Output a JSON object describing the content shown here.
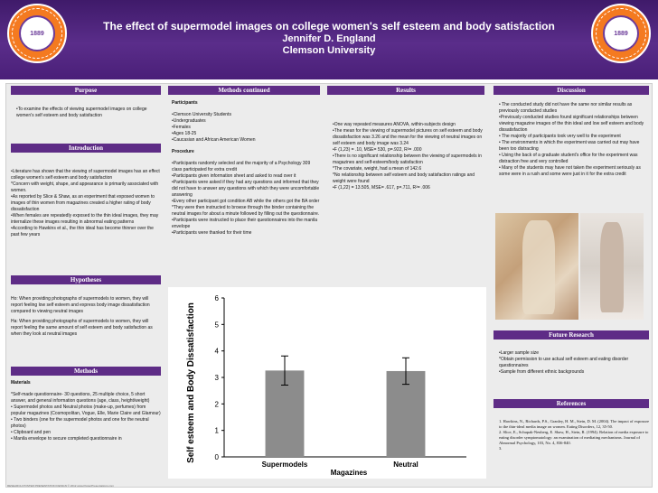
{
  "header": {
    "title": "The effect of supermodel images on college women's self esteem and body satisfaction",
    "author": "Jennifer D. England",
    "institution": "Clemson University",
    "logo_text": "CLEMSON UNIVERSITY",
    "logo_year": "1889",
    "colors": {
      "banner": "#5a2d8a",
      "logo": "#f47a20"
    }
  },
  "purpose": {
    "heading": "Purpose",
    "text": "•To examine the effects of viewing supermodel images on college women's self esteem and body satisfaction"
  },
  "introduction": {
    "heading": "Introduction",
    "lines": [
      "•Literature has shown that the viewing of supermodel images has an effect college women's self esteem and body satisfaction",
      "*Concern with weight, shape, and appearance is primarily associated with women.",
      "•As reported by Slice & Shaw, as an experiment that exposed women to images of thin women from magazines created a higher rating of body dissatisfaction",
      "•When females are repeatedly exposed to the thin ideal images, they may internalize these images resulting in abnormal eating patterns",
      "•According to Hawkins et al., the thin ideal has become thinner over the past few years"
    ]
  },
  "hypotheses": {
    "heading": "Hypotheses",
    "lines": [
      "Ho: When providing photographs of supermodels to women, they will report feeling low self esteem and express body image dissatisfaction compared to viewing neutral images",
      "Ha: When providing photographs of supermodels to women, they will report feeling the same amount of self esteem and body satisfaction as when they look at neutral images"
    ]
  },
  "methods": {
    "heading": "Methods",
    "subheading": "Materials",
    "lines": [
      "*Self-made questionnaire- 30 questions, 25 multiple choice, 5 short answer, and general information questions (age, class, height/weight)",
      "• Supermodel photos and Neutral photos (make-up, perfumes) from popular magazines (Cosmopolitan, Vogue, Elle, Marie Claire and Glamour)",
      "• Two binders (one for the supermodel photos and one for the neutral photos)",
      "• Clipboard and pen",
      "• Manila envelope to secure completed questionnaire in"
    ]
  },
  "methods_continued": {
    "heading": "Methods continued",
    "participants_label": "Participants",
    "participants": [
      "•Clemson University Students",
      "•Undergraduates",
      "•Females",
      "•Ages 18-25",
      "•Caucasian and African American Women"
    ],
    "procedure_label": "Procedure",
    "procedure": [
      "•Participants randomly selected and the majority of a Psychology 309 class participated for extra credit",
      "•Participants given information sheet and asked to read over it",
      "•Participants were asked if they had any questions and informed that they did not have to answer any questions with which they were uncomfortable answering",
      "•Every other participant got condition AB while the others got the BA order",
      "*They were then instructed to browse through the binder containing the neutral images for about a minute followed by filling out the questionnaire.",
      "•Participants were instructed to place their questionnaires into the manila envelope",
      "•Participants were thanked for their time"
    ]
  },
  "results": {
    "heading": "Results",
    "lines": [
      "•One way repeated measures ANOVA, within-subjects design",
      "•The mean for the viewing of supermodel pictures on self esteem and body dissatisfaction was 3.26 and the mean for the viewing of neutral images on self esteem and body image was 3.24",
      "•F (1,23) = .10, MSE= 530, p=.922, R²= .000",
      "•There is no significant relationship between the viewing of supermodels in magazines and self-esteem/body satisfaction",
      "*The covariate, weight, had a mean of 142.6",
      "*No relationship between self esteem and body satisfaction ratings and weight were found",
      "•F (1,22) = 13.505, MSE= .617, p=.711, R²= .006"
    ]
  },
  "discussion": {
    "heading": "Discussion",
    "lines": [
      "• The conducted study did not have the same nor similar results as previously conducted studies",
      "•Previously conducted studies found significant relationships between viewing magazine images of the thin ideal and low self esteem and body dissatisfaction",
      "• The majority of participants took very well to the experiment",
      "• The environments in which the experiment was carried out may have been too distracting",
      "• Using the back of a graduate student's office for the experiment was distraction free and very controlled",
      "• Many of the students may have not taken the experiment seriously as some were in a rush and some were just in it for the extra credit"
    ]
  },
  "future_research": {
    "heading": "Future Research",
    "lines": [
      "•Larger sample size",
      "*Obtain permission to use actual self esteem and eating disorder questionnaires",
      "•Sample from different ethnic backgrounds"
    ]
  },
  "references": {
    "heading": "References",
    "lines": [
      "1. Hawkins, N., Richards, P.S., Granley, H. M., Stein, D. M. (2004). The impact of exposure to the thin-ideal media image on women. Eating Disorders, 12, 35-50.",
      "2. Slice, E., Schupak-Neuberg, E. Shaw, H., Stein, R. (1994). Relation of media exposure to eating disorder symptomatology: an examination of mediating mechanisms. Journal of Abnormal Psychology, 103, No. 4, 836-840.",
      "3."
    ]
  },
  "chart_data": {
    "type": "bar",
    "categories": [
      "Supermodels",
      "Neutral"
    ],
    "values": [
      3.26,
      3.24
    ],
    "xlabel": "Magazines",
    "ylabel": "Self esteem and Body Dissatisfaction",
    "ylim": [
      0,
      6
    ],
    "yticks": [
      0,
      1,
      2,
      3,
      4,
      5,
      6
    ],
    "error_bars": [
      0.55,
      0.5
    ],
    "bar_color": "#8c8c8c",
    "grid": false
  },
  "footer": "RESEARCH POSTER PRESENTATION DESIGN © 2012 www.PosterPresentations.com"
}
